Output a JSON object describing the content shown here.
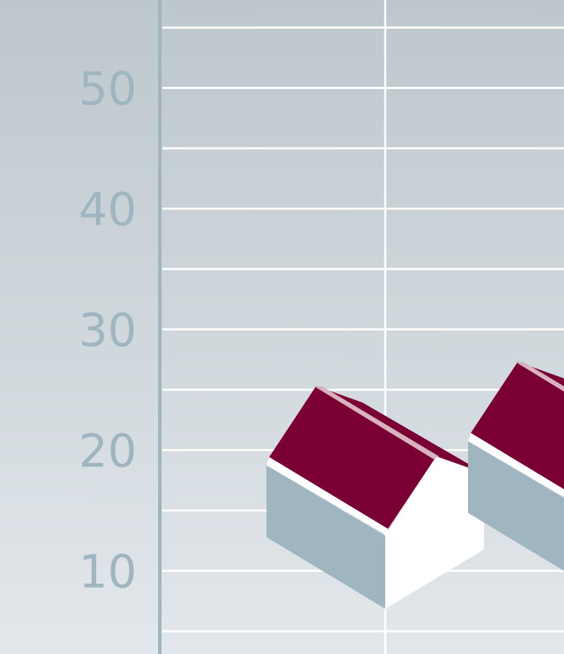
{
  "chart_data": {
    "type": "bar",
    "title": "",
    "xlabel": "",
    "ylabel": "",
    "ylim": [
      5,
      58
    ],
    "grid": true,
    "yticks": [
      {
        "value": 10,
        "label": "10"
      },
      {
        "value": 20,
        "label": "20"
      },
      {
        "value": 30,
        "label": "30"
      },
      {
        "value": 40,
        "label": "40"
      },
      {
        "value": 50,
        "label": "50"
      }
    ],
    "gridlines_minor_step": 5,
    "marks": [
      {
        "name": "house-1",
        "value": 26
      },
      {
        "name": "house-2",
        "value": 28
      }
    ]
  },
  "colors": {
    "background_top": "#bdc7cc",
    "background_bottom": "#e2e7eb",
    "axis": "#9fb5c0",
    "tick_label": "#9fb5c0",
    "grid": "#ffffff",
    "roof": "#7a0033",
    "roof_ridge": "#d9b2bf",
    "wall_side": "#9fb5c0",
    "wall_front": "#ffffff"
  }
}
